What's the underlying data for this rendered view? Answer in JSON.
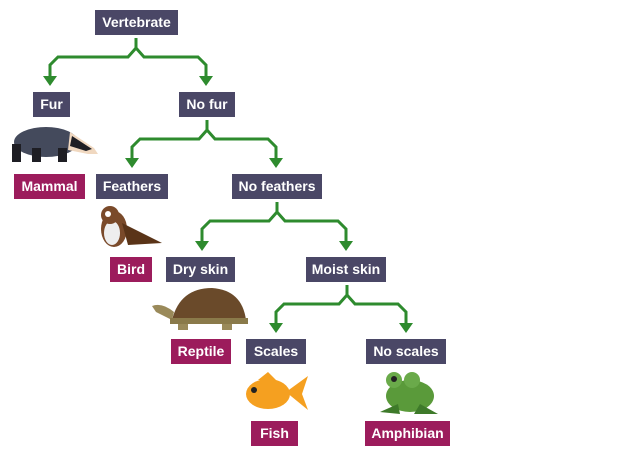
{
  "colors": {
    "question": "#4a4766",
    "answer": "#9c1c5c",
    "arrow": "#2e8b2e"
  },
  "nodes": {
    "vertebrate": "Vertebrate",
    "fur": "Fur",
    "no_fur": "No fur",
    "mammal": "Mammal",
    "feathers": "Feathers",
    "no_feathers": "No feathers",
    "bird": "Bird",
    "dry_skin": "Dry skin",
    "moist_skin": "Moist skin",
    "reptile": "Reptile",
    "scales": "Scales",
    "no_scales": "No scales",
    "fish": "Fish",
    "amphibian": "Amphibian"
  },
  "images": [
    "badger",
    "owl",
    "tortoise",
    "goldfish",
    "frog"
  ]
}
